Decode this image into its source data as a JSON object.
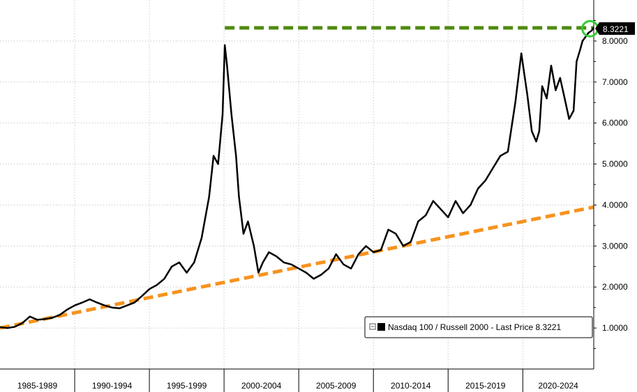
{
  "chart_data": {
    "type": "line",
    "title": "",
    "xlabel": "",
    "ylabel": "",
    "x_tick_labels": [
      "1985-1989",
      "1990-1994",
      "1995-1999",
      "2000-2004",
      "2005-2009",
      "2010-2014",
      "2015-2019",
      "2020-2024"
    ],
    "y_tick_labels": [
      "1.0000",
      "2.0000",
      "3.0000",
      "4.0000",
      "5.0000",
      "6.0000",
      "7.0000",
      "8.0000"
    ],
    "y_ticks": [
      1,
      2,
      3,
      4,
      5,
      6,
      7,
      8
    ],
    "xlim": [
      1985.0,
      2024.75
    ],
    "ylim": [
      0.0,
      9.0
    ],
    "grid": true,
    "legend": {
      "position": "bottom-right",
      "label": "Nasdaq 100 / Russell 2000 - Last Price 8.3221"
    },
    "last_price_label": "8.3221",
    "last_value": 8.3221,
    "series": [
      {
        "name": "Nasdaq 100 / Russell 2000",
        "color": "#000000",
        "x": [
          1985.0,
          1985.5,
          1986.0,
          1986.5,
          1987.0,
          1987.5,
          1988.0,
          1988.5,
          1989.0,
          1989.5,
          1990.0,
          1990.5,
          1991.0,
          1991.5,
          1992.0,
          1992.5,
          1993.0,
          1993.5,
          1994.0,
          1994.5,
          1995.0,
          1995.5,
          1996.0,
          1996.5,
          1997.0,
          1997.5,
          1998.0,
          1998.5,
          1999.0,
          1999.3,
          1999.6,
          1999.9,
          2000.05,
          2000.2,
          2000.5,
          2000.8,
          2001.0,
          2001.3,
          2001.6,
          2002.0,
          2002.3,
          2002.6,
          2003.0,
          2003.5,
          2004.0,
          2004.5,
          2005.0,
          2005.5,
          2006.0,
          2006.5,
          2007.0,
          2007.5,
          2008.0,
          2008.5,
          2009.0,
          2009.5,
          2010.0,
          2010.5,
          2011.0,
          2011.5,
          2012.0,
          2012.5,
          2013.0,
          2013.5,
          2014.0,
          2014.5,
          2015.0,
          2015.5,
          2016.0,
          2016.5,
          2017.0,
          2017.5,
          2018.0,
          2018.5,
          2019.0,
          2019.5,
          2019.9,
          2020.1,
          2020.3,
          2020.6,
          2020.9,
          2021.1,
          2021.3,
          2021.6,
          2021.9,
          2022.2,
          2022.5,
          2022.8,
          2023.1,
          2023.4,
          2023.6,
          2023.85,
          2024.0,
          2024.2,
          2024.4,
          2024.6,
          2024.75
        ],
        "values": [
          1.02,
          1.0,
          1.03,
          1.12,
          1.28,
          1.2,
          1.22,
          1.25,
          1.32,
          1.45,
          1.55,
          1.62,
          1.7,
          1.62,
          1.55,
          1.5,
          1.48,
          1.55,
          1.62,
          1.78,
          1.95,
          2.05,
          2.2,
          2.5,
          2.6,
          2.35,
          2.6,
          3.2,
          4.2,
          5.2,
          5.0,
          6.2,
          7.9,
          7.4,
          6.2,
          5.2,
          4.2,
          3.3,
          3.6,
          3.0,
          2.35,
          2.6,
          2.85,
          2.75,
          2.6,
          2.55,
          2.45,
          2.35,
          2.2,
          2.3,
          2.45,
          2.8,
          2.55,
          2.45,
          2.8,
          3.0,
          2.85,
          2.9,
          3.4,
          3.3,
          3.0,
          3.1,
          3.6,
          3.75,
          4.1,
          3.9,
          3.7,
          4.1,
          3.8,
          4.0,
          4.4,
          4.6,
          4.9,
          5.2,
          5.3,
          6.5,
          7.7,
          7.2,
          6.7,
          5.8,
          5.55,
          5.8,
          6.9,
          6.6,
          7.4,
          6.8,
          7.1,
          6.6,
          6.1,
          6.3,
          7.5,
          7.8,
          8.0,
          8.1,
          8.2,
          8.25,
          8.3221
        ]
      },
      {
        "name": "",
        "style": "dashed",
        "color": "#F7931E",
        "x": [
          1985.0,
          2024.75
        ],
        "values": [
          1.0,
          3.95
        ]
      },
      {
        "name": "",
        "style": "dashed",
        "color": "#4F8A10",
        "x": [
          2000.05,
          2024.75
        ],
        "values": [
          8.32,
          8.32
        ]
      }
    ],
    "highlight_circle": {
      "x": 2024.5,
      "y": 8.3,
      "color": "#32CD32"
    }
  }
}
